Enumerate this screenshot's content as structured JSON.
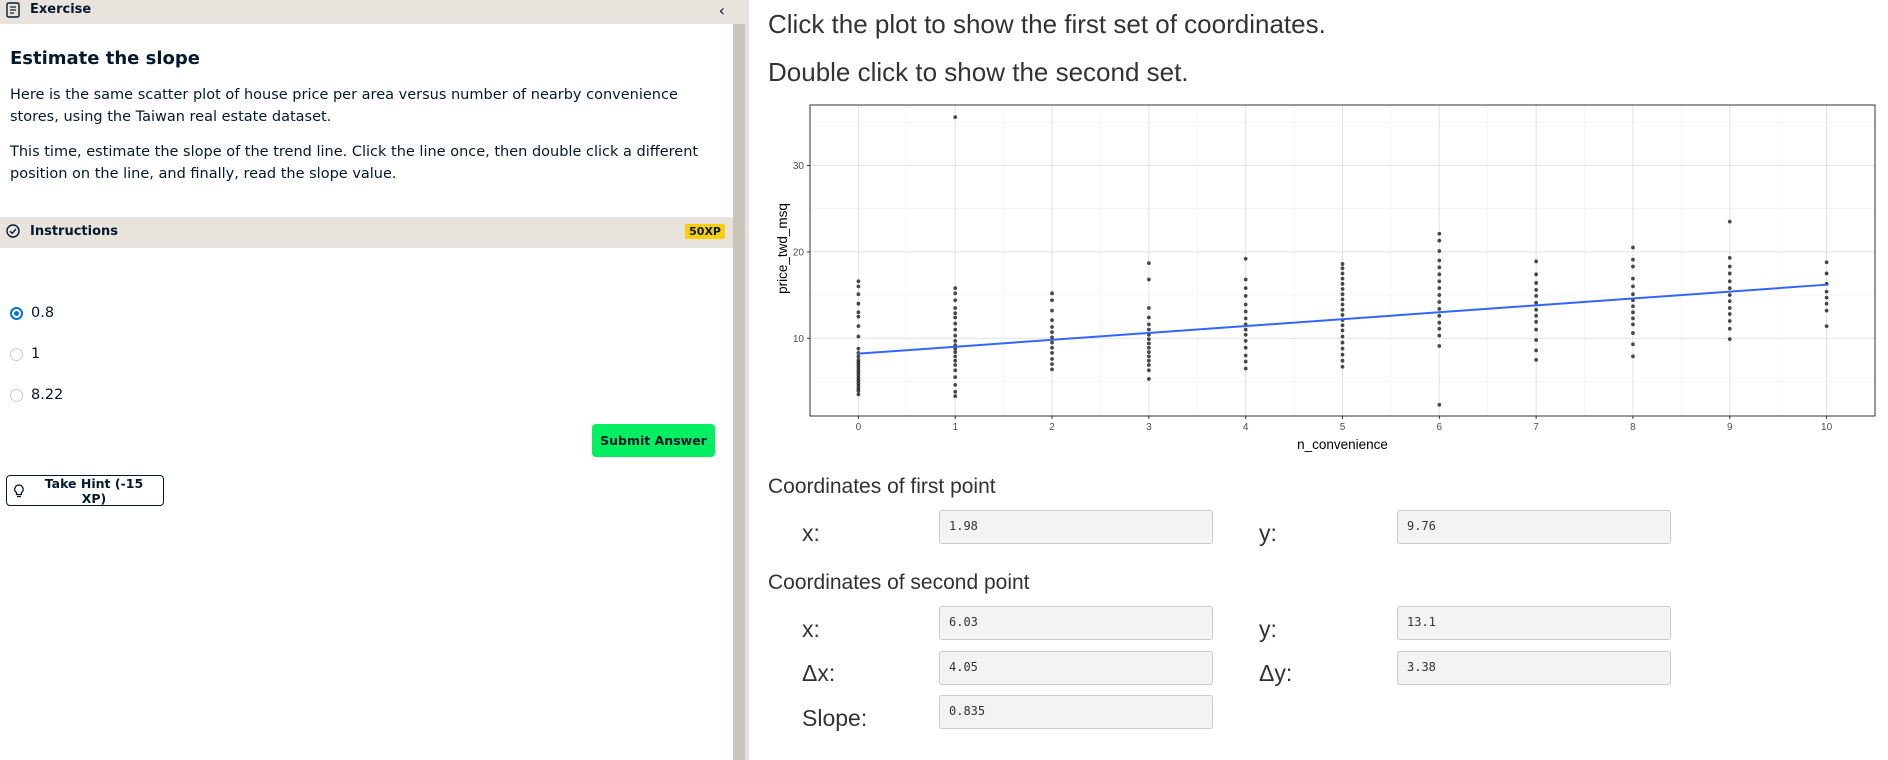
{
  "exercise": {
    "header_label": "Exercise",
    "title": "Estimate the slope",
    "para1": "Here is the same scatter plot of house price per area versus number of nearby convenience stores, using the Taiwan real estate dataset.",
    "para2": "This time, estimate the slope of the trend line. Click the line once, then double click a different position on the line, and finally, read the slope value."
  },
  "instructions": {
    "label": "Instructions",
    "xp": "50XP",
    "options": [
      "0.8",
      "1",
      "8.22"
    ],
    "selected_index": 0,
    "submit_label": "Submit Answer",
    "hint_label": "Take Hint (-15 XP)"
  },
  "app": {
    "line1": "Click the plot to show the first set of coordinates.",
    "line2": "Double click to show the second set.",
    "first_heading": "Coordinates of first point",
    "second_heading": "Coordinates of second point",
    "labels": {
      "x": "x:",
      "y": "y:",
      "dx": "Δx:",
      "dy": "Δy:",
      "slope": "Slope:"
    },
    "first": {
      "x": "1.98",
      "y": "9.76"
    },
    "second": {
      "x": "6.03",
      "y": "13.1"
    },
    "delta": {
      "dx": "4.05",
      "dy": "3.38"
    },
    "slope": "0.835"
  },
  "chart_data": {
    "type": "scatter",
    "xlabel": "n_convenience",
    "ylabel": "price_twd_msq",
    "xlim": [
      -0.5,
      10.5
    ],
    "ylim": [
      1,
      37
    ],
    "x_ticks": [
      0,
      1,
      2,
      3,
      4,
      5,
      6,
      7,
      8,
      9,
      10
    ],
    "y_ticks": [
      10,
      20,
      30
    ],
    "grid": true,
    "trend_line": {
      "x": [
        0,
        10
      ],
      "y": [
        8.22,
        16.2
      ],
      "color": "#3366ff"
    },
    "point_color": "#000000",
    "points": [
      [
        0,
        3.5
      ],
      [
        0,
        3.9
      ],
      [
        0,
        4.2
      ],
      [
        0,
        4.5
      ],
      [
        0,
        4.8
      ],
      [
        0,
        5.1
      ],
      [
        0,
        5.4
      ],
      [
        0,
        5.7
      ],
      [
        0,
        6.0
      ],
      [
        0,
        6.3
      ],
      [
        0,
        6.6
      ],
      [
        0,
        6.9
      ],
      [
        0,
        7.2
      ],
      [
        0,
        7.5
      ],
      [
        0,
        7.9
      ],
      [
        0,
        8.3
      ],
      [
        0,
        8.8
      ],
      [
        0,
        10.2
      ],
      [
        0,
        11.4
      ],
      [
        0,
        12.5
      ],
      [
        0,
        13.0
      ],
      [
        0,
        14.0
      ],
      [
        0,
        15.1
      ],
      [
        0,
        16.0
      ],
      [
        0,
        16.6
      ],
      [
        1,
        3.3
      ],
      [
        1,
        3.8
      ],
      [
        1,
        4.6
      ],
      [
        1,
        5.5
      ],
      [
        1,
        6.3
      ],
      [
        1,
        6.9
      ],
      [
        1,
        7.4
      ],
      [
        1,
        7.9
      ],
      [
        1,
        8.4
      ],
      [
        1,
        8.8
      ],
      [
        1,
        9.2
      ],
      [
        1,
        9.7
      ],
      [
        1,
        10.3
      ],
      [
        1,
        11.0
      ],
      [
        1,
        11.7
      ],
      [
        1,
        12.4
      ],
      [
        1,
        12.9
      ],
      [
        1,
        13.5
      ],
      [
        1,
        14.4
      ],
      [
        1,
        15.2
      ],
      [
        1,
        15.8
      ],
      [
        1,
        35.6
      ],
      [
        2,
        6.4
      ],
      [
        2,
        7.0
      ],
      [
        2,
        7.6
      ],
      [
        2,
        8.3
      ],
      [
        2,
        8.9
      ],
      [
        2,
        9.5
      ],
      [
        2,
        10.1
      ],
      [
        2,
        10.7
      ],
      [
        2,
        11.3
      ],
      [
        2,
        12.1
      ],
      [
        2,
        13.2
      ],
      [
        2,
        14.4
      ],
      [
        2,
        15.2
      ],
      [
        3,
        5.3
      ],
      [
        3,
        6.3
      ],
      [
        3,
        6.9
      ],
      [
        3,
        7.4
      ],
      [
        3,
        7.9
      ],
      [
        3,
        8.4
      ],
      [
        3,
        8.9
      ],
      [
        3,
        9.4
      ],
      [
        3,
        9.9
      ],
      [
        3,
        10.4
      ],
      [
        3,
        11.0
      ],
      [
        3,
        11.6
      ],
      [
        3,
        12.4
      ],
      [
        3,
        13.5
      ],
      [
        3,
        16.8
      ],
      [
        3,
        18.7
      ],
      [
        4,
        6.5
      ],
      [
        4,
        7.3
      ],
      [
        4,
        8.0
      ],
      [
        4,
        8.9
      ],
      [
        4,
        9.7
      ],
      [
        4,
        10.4
      ],
      [
        4,
        11.0
      ],
      [
        4,
        11.6
      ],
      [
        4,
        12.3
      ],
      [
        4,
        13.1
      ],
      [
        4,
        13.9
      ],
      [
        4,
        14.9
      ],
      [
        4,
        15.8
      ],
      [
        4,
        16.8
      ],
      [
        4,
        19.2
      ],
      [
        5,
        6.7
      ],
      [
        5,
        7.4
      ],
      [
        5,
        8.1
      ],
      [
        5,
        8.8
      ],
      [
        5,
        9.5
      ],
      [
        5,
        10.2
      ],
      [
        5,
        10.9
      ],
      [
        5,
        11.5
      ],
      [
        5,
        12.1
      ],
      [
        5,
        12.7
      ],
      [
        5,
        13.3
      ],
      [
        5,
        13.9
      ],
      [
        5,
        14.5
      ],
      [
        5,
        15.1
      ],
      [
        5,
        15.7
      ],
      [
        5,
        16.3
      ],
      [
        5,
        16.9
      ],
      [
        5,
        17.5
      ],
      [
        5,
        18.1
      ],
      [
        5,
        18.6
      ],
      [
        6,
        2.3
      ],
      [
        6,
        9.1
      ],
      [
        6,
        10.3
      ],
      [
        6,
        11.1
      ],
      [
        6,
        11.8
      ],
      [
        6,
        12.6
      ],
      [
        6,
        13.4
      ],
      [
        6,
        14.2
      ],
      [
        6,
        15.0
      ],
      [
        6,
        15.8
      ],
      [
        6,
        16.6
      ],
      [
        6,
        17.4
      ],
      [
        6,
        18.2
      ],
      [
        6,
        19.0
      ],
      [
        6,
        20.1
      ],
      [
        6,
        21.3
      ],
      [
        6,
        22.1
      ],
      [
        7,
        7.5
      ],
      [
        7,
        8.6
      ],
      [
        7,
        9.8
      ],
      [
        7,
        11.0
      ],
      [
        7,
        11.9
      ],
      [
        7,
        12.6
      ],
      [
        7,
        13.3
      ],
      [
        7,
        14.1
      ],
      [
        7,
        14.9
      ],
      [
        7,
        15.6
      ],
      [
        7,
        16.4
      ],
      [
        7,
        17.4
      ],
      [
        7,
        18.9
      ],
      [
        8,
        7.9
      ],
      [
        8,
        9.3
      ],
      [
        8,
        10.6
      ],
      [
        8,
        11.6
      ],
      [
        8,
        12.3
      ],
      [
        8,
        13.0
      ],
      [
        8,
        13.7
      ],
      [
        8,
        14.4
      ],
      [
        8,
        15.1
      ],
      [
        8,
        16.0
      ],
      [
        8,
        16.9
      ],
      [
        8,
        18.3
      ],
      [
        8,
        19.1
      ],
      [
        8,
        20.5
      ],
      [
        9,
        9.9
      ],
      [
        9,
        11.1
      ],
      [
        9,
        12.0
      ],
      [
        9,
        12.8
      ],
      [
        9,
        13.5
      ],
      [
        9,
        14.3
      ],
      [
        9,
        15.0
      ],
      [
        9,
        15.8
      ],
      [
        9,
        16.6
      ],
      [
        9,
        17.5
      ],
      [
        9,
        18.3
      ],
      [
        9,
        19.3
      ],
      [
        9,
        23.5
      ],
      [
        10,
        11.4
      ],
      [
        10,
        13.2
      ],
      [
        10,
        14.0
      ],
      [
        10,
        14.7
      ],
      [
        10,
        15.4
      ],
      [
        10,
        16.3
      ],
      [
        10,
        17.5
      ],
      [
        10,
        18.8
      ]
    ]
  }
}
